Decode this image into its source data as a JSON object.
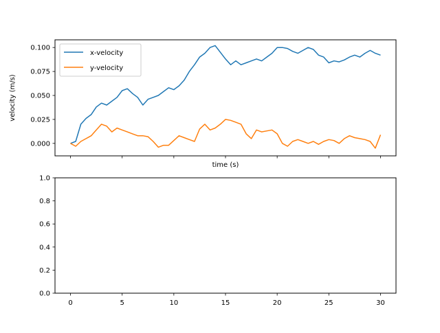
{
  "chart_data": [
    {
      "type": "line",
      "title": "",
      "xlabel": "time (s)",
      "ylabel": "velocity (m/s)",
      "xlim": [
        -1.5,
        31.5
      ],
      "ylim": [
        -0.013,
        0.108
      ],
      "x_ticks": [
        0,
        5,
        10,
        15,
        20,
        25,
        30
      ],
      "show_x_tick_labels": false,
      "y_ticks": [
        0.0,
        0.025,
        0.05,
        0.075,
        0.1
      ],
      "y_tick_labels": [
        "0.000",
        "0.025",
        "0.050",
        "0.075",
        "0.100"
      ],
      "grid": false,
      "legend_position": "top-left",
      "series": [
        {
          "name": "x-velocity",
          "color": "#1f77b4",
          "x": [
            0,
            0.5,
            1,
            1.5,
            2,
            2.5,
            3,
            3.5,
            4,
            4.5,
            5,
            5.5,
            6,
            6.5,
            7,
            7.5,
            8,
            8.5,
            9,
            9.5,
            10,
            10.5,
            11,
            11.5,
            12,
            12.5,
            13,
            13.5,
            14,
            14.5,
            15,
            15.5,
            16,
            16.5,
            17,
            17.5,
            18,
            18.5,
            19,
            19.5,
            20,
            20.5,
            21,
            21.5,
            22,
            22.5,
            23,
            23.5,
            24,
            24.5,
            25,
            25.5,
            26,
            26.5,
            27,
            27.5,
            28,
            28.5,
            29,
            29.5,
            30
          ],
          "y": [
            0.0,
            0.002,
            0.02,
            0.026,
            0.03,
            0.038,
            0.042,
            0.04,
            0.044,
            0.048,
            0.055,
            0.057,
            0.052,
            0.048,
            0.04,
            0.046,
            0.048,
            0.05,
            0.054,
            0.058,
            0.056,
            0.06,
            0.066,
            0.075,
            0.082,
            0.09,
            0.094,
            0.1,
            0.102,
            0.095,
            0.088,
            0.082,
            0.086,
            0.082,
            0.084,
            0.086,
            0.088,
            0.086,
            0.09,
            0.094,
            0.1,
            0.1,
            0.099,
            0.096,
            0.094,
            0.097,
            0.1,
            0.098,
            0.092,
            0.09,
            0.084,
            0.086,
            0.085,
            0.087,
            0.09,
            0.092,
            0.09,
            0.094,
            0.097,
            0.094,
            0.092
          ]
        },
        {
          "name": "y-velocity",
          "color": "#ff7f0e",
          "x": [
            0,
            0.5,
            1,
            1.5,
            2,
            2.5,
            3,
            3.5,
            4,
            4.5,
            5,
            5.5,
            6,
            6.5,
            7,
            7.5,
            8,
            8.5,
            9,
            9.5,
            10,
            10.5,
            11,
            11.5,
            12,
            12.5,
            13,
            13.5,
            14,
            14.5,
            15,
            15.5,
            16,
            16.5,
            17,
            17.5,
            18,
            18.5,
            19,
            19.5,
            20,
            20.5,
            21,
            21.5,
            22,
            22.5,
            23,
            23.5,
            24,
            24.5,
            25,
            25.5,
            26,
            26.5,
            27,
            27.5,
            28,
            28.5,
            29,
            29.5,
            30
          ],
          "y": [
            0.0,
            -0.003,
            0.002,
            0.005,
            0.008,
            0.014,
            0.02,
            0.018,
            0.012,
            0.016,
            0.014,
            0.012,
            0.01,
            0.008,
            0.008,
            0.007,
            0.002,
            -0.004,
            -0.002,
            -0.002,
            0.003,
            0.008,
            0.006,
            0.004,
            0.002,
            0.015,
            0.02,
            0.014,
            0.016,
            0.02,
            0.025,
            0.024,
            0.022,
            0.02,
            0.01,
            0.005,
            0.014,
            0.012,
            0.013,
            0.014,
            0.01,
            0.0,
            -0.003,
            0.002,
            0.004,
            0.002,
            0.0,
            0.002,
            -0.001,
            0.002,
            0.004,
            0.003,
            0.0,
            0.005,
            0.008,
            0.006,
            0.005,
            0.004,
            0.002,
            -0.005,
            0.009
          ]
        }
      ]
    },
    {
      "type": "line",
      "title": "",
      "xlabel": "",
      "ylabel": "",
      "xlim": [
        -1.5,
        31.5
      ],
      "ylim": [
        0.0,
        1.0
      ],
      "x_ticks": [
        0,
        5,
        10,
        15,
        20,
        25,
        30
      ],
      "x_tick_labels": [
        "0",
        "5",
        "10",
        "15",
        "20",
        "25",
        "30"
      ],
      "y_ticks": [
        0.0,
        0.2,
        0.4,
        0.6,
        0.8,
        1.0
      ],
      "y_tick_labels": [
        "0.0",
        "0.2",
        "0.4",
        "0.6",
        "0.8",
        "1.0"
      ],
      "grid": false,
      "series": []
    }
  ]
}
